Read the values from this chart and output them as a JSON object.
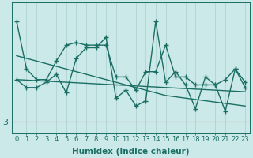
{
  "xlabel": "Humidex (Indice chaleur)",
  "background_color": "#cce9e9",
  "plot_bg_color": "#cce9e9",
  "line_color": "#1a6e64",
  "grid_color": "#aacfcf",
  "hline_color": "#d46060",
  "x_values": [
    0,
    1,
    2,
    3,
    4,
    5,
    6,
    7,
    8,
    9,
    10,
    11,
    12,
    13,
    14,
    15,
    16,
    17,
    18,
    19,
    20,
    21,
    22,
    23
  ],
  "line1": [
    6.8,
    5.0,
    4.6,
    4.6,
    5.3,
    5.9,
    6.0,
    5.9,
    5.9,
    5.9,
    4.7,
    4.7,
    4.2,
    4.9,
    4.9,
    5.9,
    4.7,
    4.7,
    4.4,
    4.4,
    4.4,
    4.6,
    5.0,
    4.5
  ],
  "line2": [
    4.6,
    4.3,
    4.3,
    4.5,
    4.8,
    4.1,
    5.4,
    5.8,
    5.8,
    6.2,
    3.9,
    4.2,
    3.6,
    3.8,
    6.8,
    4.5,
    4.9,
    4.4,
    3.5,
    4.7,
    4.4,
    3.4,
    5.0,
    4.3
  ],
  "line3": [
    5.5,
    5.4,
    5.3,
    5.2,
    5.1,
    5.0,
    4.9,
    4.8,
    4.7,
    4.6,
    4.5,
    4.4,
    4.3,
    4.2,
    4.1,
    4.0,
    3.95,
    3.9,
    3.85,
    3.8,
    3.75,
    3.7,
    3.65,
    3.6
  ],
  "line4": [
    4.6,
    4.58,
    4.56,
    4.54,
    4.52,
    4.5,
    4.48,
    4.46,
    4.44,
    4.42,
    4.4,
    4.38,
    4.36,
    4.34,
    4.32,
    4.3,
    4.28,
    4.26,
    4.24,
    4.22,
    4.2,
    4.18,
    4.16,
    4.14
  ],
  "ytick_value": 3.0,
  "ytick_label": "3",
  "xlim": [
    -0.5,
    23.5
  ],
  "ylim": [
    2.6,
    7.5
  ],
  "marker": "+",
  "markersize": 4,
  "linewidth": 1.0,
  "tick_fontsize": 6,
  "label_fontsize": 7.5
}
